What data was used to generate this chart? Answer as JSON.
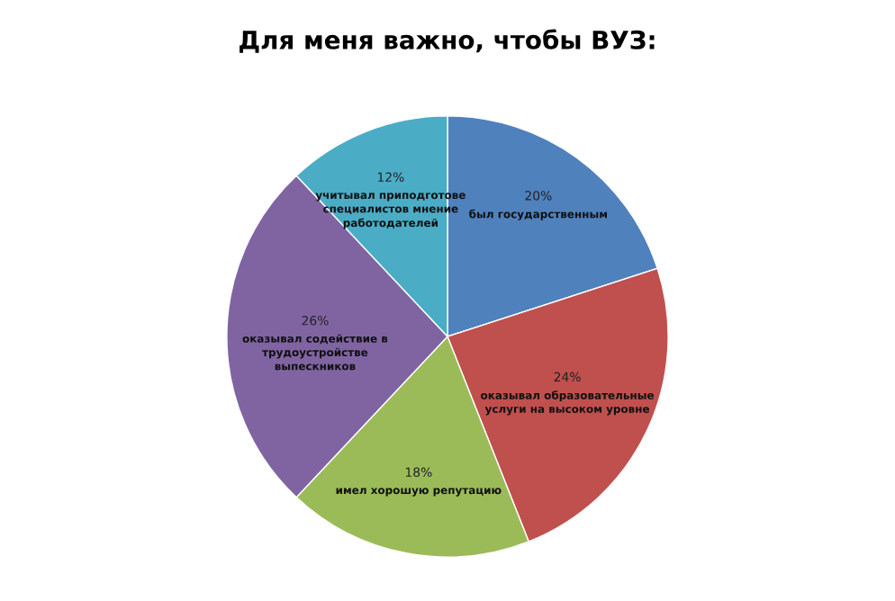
{
  "chart_data": {
    "type": "pie",
    "title": "Для меня важно, чтобы ВУЗ:",
    "categories": [
      "был государственным",
      "оказывал образовательные\nуслуги на высоком уровне",
      "имел хорошую репутацию",
      "оказывал содействие в\nтрудоустройстве\nвыпескников",
      "учитывал приподготове\nспециалистов мнение\nработодателей"
    ],
    "values": [
      20,
      24,
      18,
      26,
      12
    ],
    "value_labels": [
      "20%",
      "24%",
      "18%",
      "26%",
      "12%"
    ],
    "colors": [
      "#4f81bd",
      "#c0504d",
      "#9bbb59",
      "#8064a2",
      "#4bacc6"
    ],
    "legend": false
  }
}
